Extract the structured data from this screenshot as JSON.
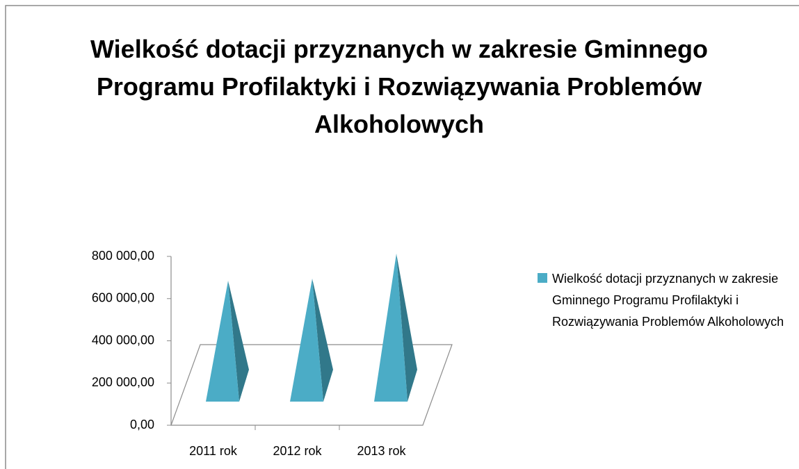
{
  "chart_data": {
    "type": "pyramid3d",
    "title": "Wielkość dotacji przyznanych w zakresie Gminnego Programu Profilaktyki i Rozwiązywania Problemów Alkoholowych",
    "categories": [
      "2011 rok",
      "2012 rok",
      "2013 rok"
    ],
    "series": [
      {
        "name": "Wielkość dotacji przyznanych w zakresie Gminnego Programu Profilaktyki i Rozwiązywania Problemów Alkoholowych",
        "color": "#4bacc6",
        "side_color": "#31788a",
        "values": [
          580000,
          590000,
          710000
        ]
      }
    ],
    "ylim": [
      0,
      800000
    ],
    "yticks": [
      {
        "value": 0,
        "label": "0,00"
      },
      {
        "value": 200000,
        "label": "200 000,00"
      },
      {
        "value": 400000,
        "label": "400 000,00"
      },
      {
        "value": 600000,
        "label": "600 000,00"
      },
      {
        "value": 800000,
        "label": "800 000,00"
      }
    ],
    "legend": "right"
  }
}
